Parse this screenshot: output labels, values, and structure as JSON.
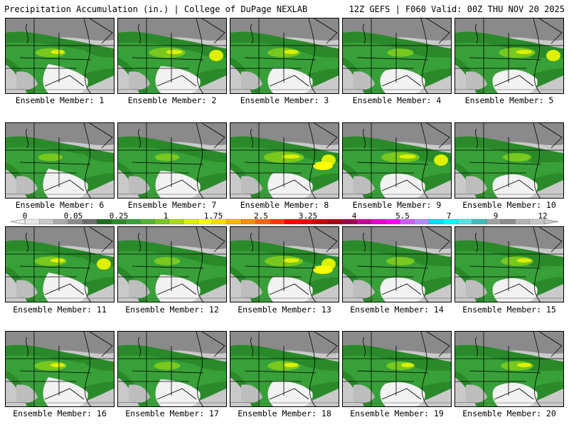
{
  "header": {
    "left": "Precipitation Accumulation (in.) | College of DuPage NEXLAB",
    "right": "12Z GEFS | F060 Valid: 00Z THU NOV 20 2025"
  },
  "members": [
    {
      "label": "Ensemble Member: 1",
      "intensity": 0.55,
      "hotspots": 1
    },
    {
      "label": "Ensemble Member: 2",
      "intensity": 0.7,
      "hotspots": 2
    },
    {
      "label": "Ensemble Member: 3",
      "intensity": 0.6,
      "hotspots": 1
    },
    {
      "label": "Ensemble Member: 4",
      "intensity": 0.45,
      "hotspots": 0
    },
    {
      "label": "Ensemble Member: 5",
      "intensity": 0.7,
      "hotspots": 2
    },
    {
      "label": "Ensemble Member: 6",
      "intensity": 0.4,
      "hotspots": 0
    },
    {
      "label": "Ensemble Member: 7",
      "intensity": 0.4,
      "hotspots": 0
    },
    {
      "label": "Ensemble Member: 8",
      "intensity": 0.8,
      "hotspots": 3
    },
    {
      "label": "Ensemble Member: 9",
      "intensity": 0.75,
      "hotspots": 2
    },
    {
      "label": "Ensemble Member: 10",
      "intensity": 0.5,
      "hotspots": 0
    },
    {
      "label": "Ensemble Member: 11",
      "intensity": 0.6,
      "hotspots": 2
    },
    {
      "label": "Ensemble Member: 12",
      "intensity": 0.45,
      "hotspots": 0
    },
    {
      "label": "Ensemble Member: 13",
      "intensity": 0.75,
      "hotspots": 3
    },
    {
      "label": "Ensemble Member: 14",
      "intensity": 0.5,
      "hotspots": 0
    },
    {
      "label": "Ensemble Member: 15",
      "intensity": 0.6,
      "hotspots": 1
    },
    {
      "label": "Ensemble Member: 16",
      "intensity": 0.6,
      "hotspots": 1
    },
    {
      "label": "Ensemble Member: 17",
      "intensity": 0.45,
      "hotspots": 0
    },
    {
      "label": "Ensemble Member: 18",
      "intensity": 0.6,
      "hotspots": 1
    },
    {
      "label": "Ensemble Member: 19",
      "intensity": 0.5,
      "hotspots": 1
    },
    {
      "label": "Ensemble Member: 20",
      "intensity": 0.6,
      "hotspots": 1
    }
  ],
  "legend": {
    "labels": [
      "0",
      "0.05",
      "0.25",
      "1",
      "1.75",
      "2.5",
      "3.25",
      "4",
      "5.5",
      "7",
      "9",
      "12"
    ],
    "colors": [
      "#e6e6e6",
      "#c8c8c8",
      "#aaaaaa",
      "#8c8c8c",
      "#6e6e6e",
      "#1e6e1e",
      "#2a8a2a",
      "#38a038",
      "#52b432",
      "#78c81e",
      "#a8dc14",
      "#dcf000",
      "#ffff00",
      "#ffdc00",
      "#ffb400",
      "#ff8c00",
      "#ff6400",
      "#ff3c00",
      "#ff0000",
      "#e60000",
      "#c80000",
      "#aa0014",
      "#a00050",
      "#c80096",
      "#e600d2",
      "#ff00ff",
      "#d25aff",
      "#b48cff",
      "#00dcff",
      "#00ffff",
      "#50e6e6",
      "#3cbebe",
      "#a0a0a0",
      "#8c8c8c",
      "#b4b4b4",
      "#c8c8c8"
    ]
  }
}
